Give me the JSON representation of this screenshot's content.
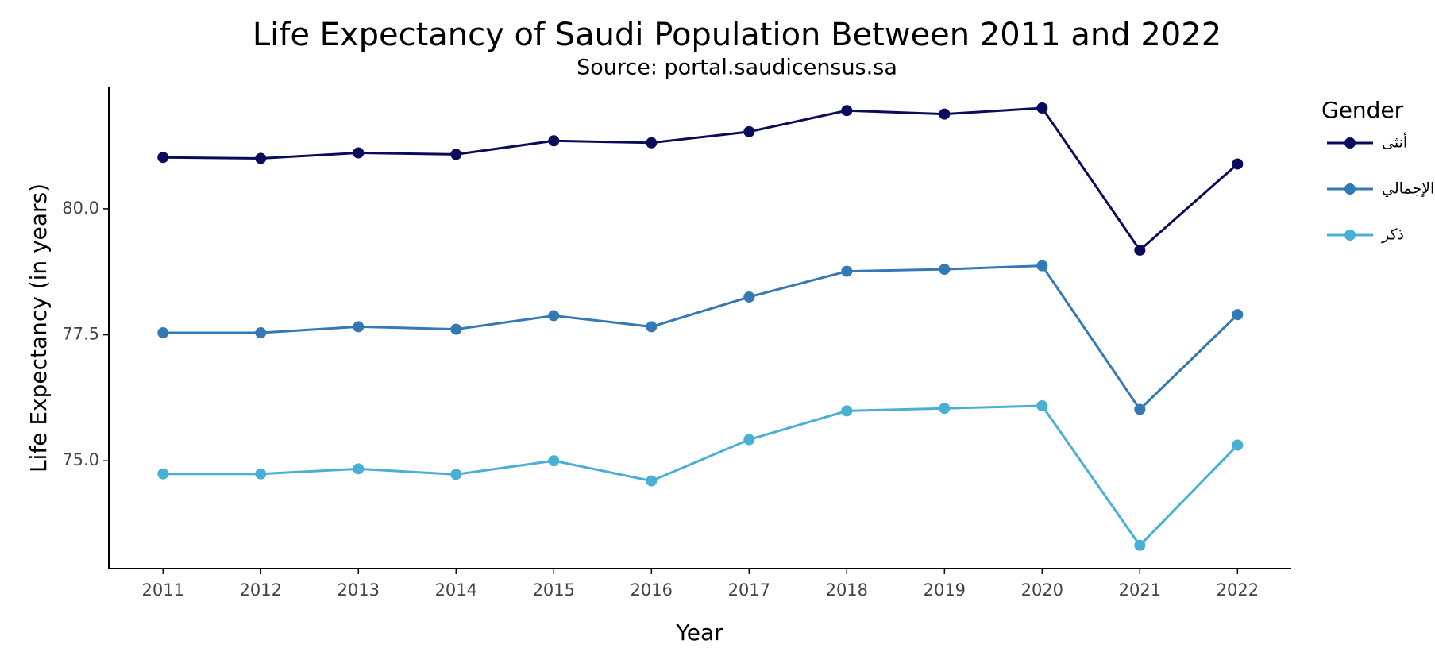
{
  "chart_data": {
    "type": "line",
    "title": "Life Expectancy of Saudi Population Between 2011 and 2022",
    "subtitle": "Source: portal.saudicensus.sa",
    "x_label": "Year",
    "y_label": "Life Expectancy (in years)",
    "legend_title": "Gender",
    "legend_position": "right",
    "grid": false,
    "x": [
      2011,
      2012,
      2013,
      2014,
      2015,
      2016,
      2017,
      2018,
      2019,
      2020,
      2021,
      2022
    ],
    "xlim": [
      2010.445,
      2022.55
    ],
    "xticks": [
      2011,
      2012,
      2013,
      2014,
      2015,
      2016,
      2017,
      2018,
      2019,
      2020,
      2021,
      2022
    ],
    "ylim": [
      72.86,
      82.41
    ],
    "yticks": [
      {
        "value": 75,
        "label": "75.0"
      },
      {
        "value": 77.5,
        "label": "77.5"
      },
      {
        "value": 80,
        "label": "80.0"
      }
    ],
    "series": [
      {
        "name": "أنثى",
        "color": "#0b0b5c",
        "values": [
          81.02,
          81.0,
          81.11,
          81.08,
          81.35,
          81.31,
          81.53,
          81.95,
          81.88,
          82.0,
          79.18,
          80.89
        ]
      },
      {
        "name": "الإجمالي",
        "color": "#3478b4",
        "values": [
          77.54,
          77.54,
          77.66,
          77.61,
          77.88,
          77.66,
          78.25,
          78.76,
          78.8,
          78.87,
          76.02,
          77.9
        ]
      },
      {
        "name": "ذكر",
        "color": "#4aafd5",
        "values": [
          74.74,
          74.74,
          74.84,
          74.73,
          75.0,
          74.6,
          75.42,
          75.99,
          76.04,
          76.09,
          73.32,
          75.31
        ]
      }
    ]
  }
}
